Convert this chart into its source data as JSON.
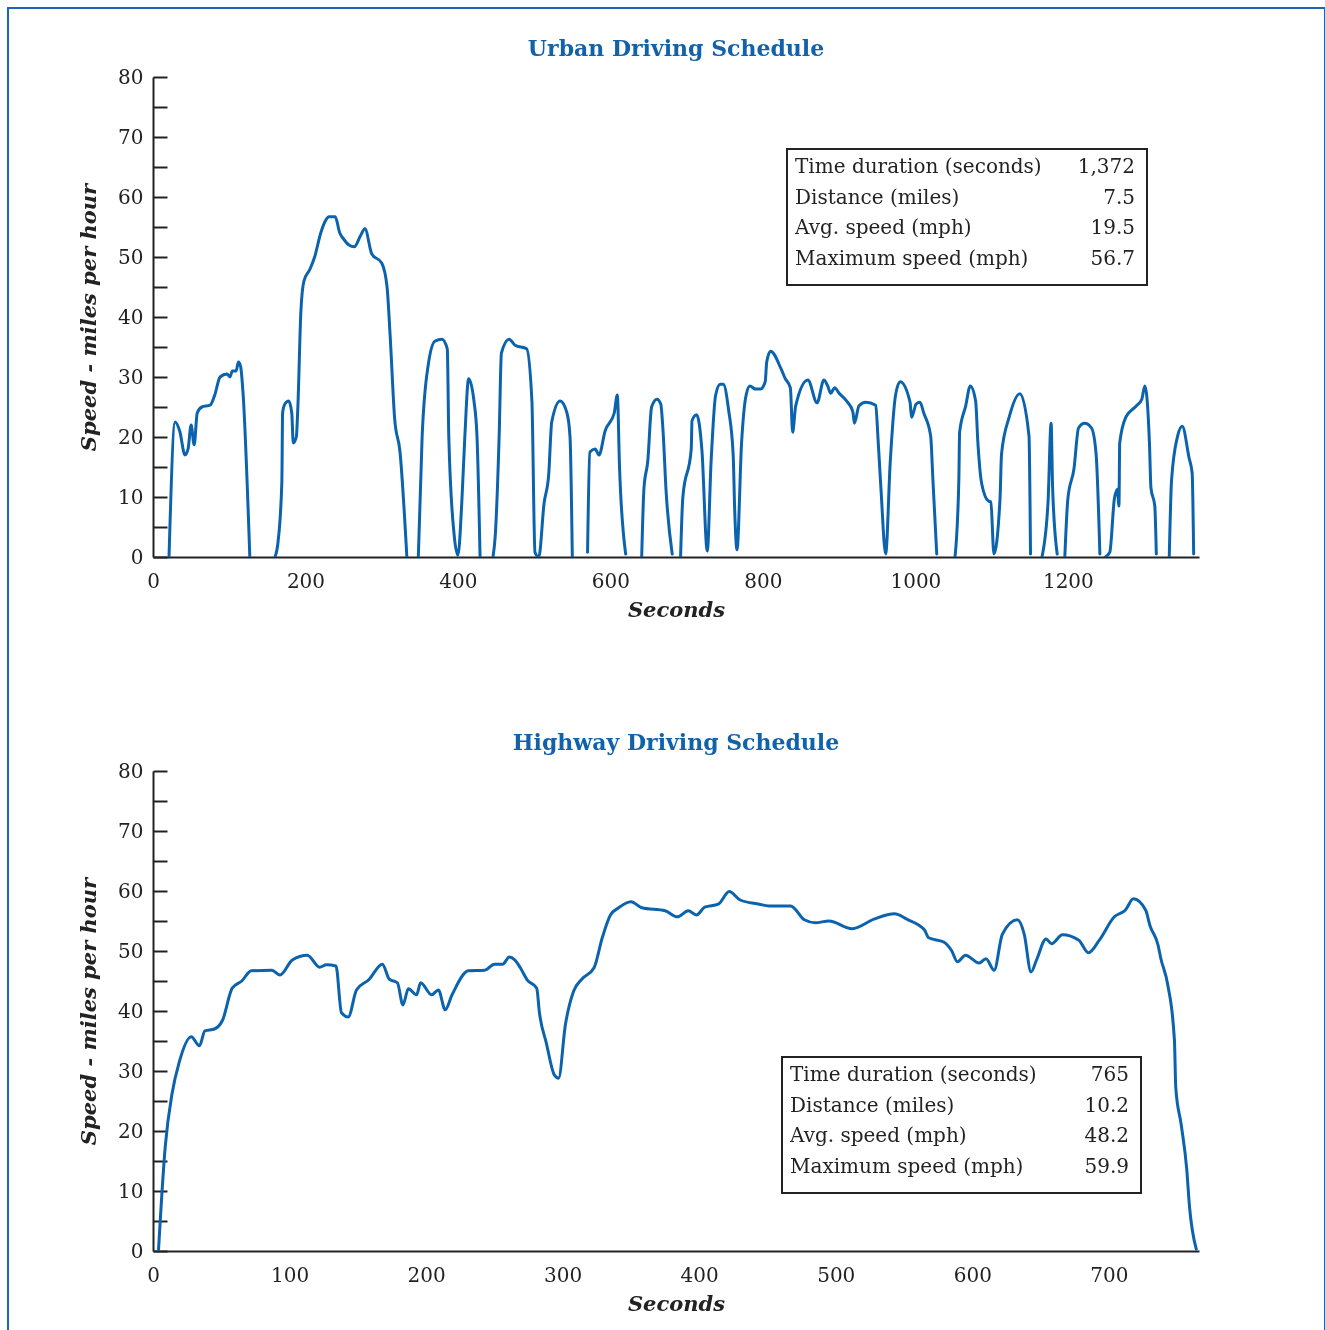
{
  "chart_data": [
    {
      "type": "line",
      "title": "Urban Driving Schedule",
      "xlabel": "Seconds",
      "ylabel": "Speed - miles per hour",
      "xlim": [
        0,
        1372
      ],
      "ylim": [
        0,
        80
      ],
      "xticks": [
        0,
        200,
        400,
        600,
        800,
        1000,
        1200
      ],
      "yticks": [
        0,
        {
          "value": 5,
          "label": null
        },
        10,
        {
          "value": 15,
          "label": null
        },
        20,
        {
          "value": 25,
          "label": null
        },
        30,
        {
          "value": 35,
          "label": null
        },
        40,
        {
          "value": 45,
          "label": null
        },
        50,
        {
          "value": 55,
          "label": null
        },
        60,
        {
          "value": 65,
          "label": null
        },
        70,
        {
          "value": 75,
          "label": null
        },
        80
      ],
      "x": [
        21,
        29,
        35,
        42,
        46,
        50,
        54,
        58,
        64,
        75,
        81,
        88,
        97,
        101,
        104,
        109,
        112,
        115,
        118,
        127,
        143,
        160,
        164,
        169,
        170,
        173,
        178,
        182,
        184,
        188,
        190,
        194,
        198,
        206,
        212,
        220,
        226,
        231,
        239,
        245,
        250,
        257,
        264,
        272,
        278,
        287,
        300,
        307,
        311,
        317,
        324,
        333,
        340,
        348,
        353,
        361,
        370,
        379,
        386,
        388,
        395,
        400,
        405,
        409,
        414,
        421,
        425,
        429,
        437,
        446,
        449,
        454,
        457,
        467,
        475,
        490,
        497,
        501,
        506,
        513,
        519,
        523,
        534,
        543,
        547,
        550,
        560,
        570,
        573,
        580,
        585,
        593,
        605,
        609,
        612,
        620,
        630,
        641,
        644,
        649,
        654,
        661,
        666,
        669,
        673,
        681,
        686,
        692,
        695,
        706,
        707,
        713,
        720,
        727,
        732,
        738,
        744,
        748,
        755,
        761,
        763,
        766,
        772,
        778,
        783,
        790,
        797,
        803,
        805,
        810,
        824,
        829,
        836,
        839,
        843,
        859,
        871,
        880,
        885,
        889,
        894,
        900,
        911,
        918,
        920,
        926,
        935,
        948,
        951,
        955,
        961,
        967,
        974,
        980,
        993,
        995,
        1001,
        1006,
        1011,
        1020,
        1023,
        1028,
        1040,
        1052,
        1057,
        1058,
        1066,
        1072,
        1079,
        1082,
        1087,
        1096,
        1099,
        1103,
        1111,
        1113,
        1123,
        1137,
        1149,
        1151,
        1158,
        1166,
        1174,
        1178,
        1180,
        1186,
        1191,
        1196,
        1200,
        1208,
        1214,
        1222,
        1231,
        1237,
        1242,
        1245,
        1249,
        1255,
        1261,
        1265,
        1267,
        1268,
        1276,
        1290,
        1297,
        1301,
        1307,
        1309,
        1314,
        1316,
        1325,
        1333,
        1336,
        1344,
        1350,
        1359,
        1363,
        1365
      ],
      "series": [
        {
          "color": "#0b63ad",
          "values": [
            0,
            22.5,
            21,
            17,
            18,
            22,
            18.7,
            24,
            25,
            25.3,
            27,
            30,
            30.5,
            30,
            31,
            31,
            32.5,
            31.7,
            27.5,
            0,
            null,
            0,
            2.5,
            12.5,
            24,
            25.5,
            26,
            24,
            19,
            20,
            25,
            41,
            46,
            48,
            50,
            54,
            56,
            56.7,
            56.7,
            54,
            53,
            52,
            51.7,
            53.5,
            54.7,
            50.5,
            49,
            45,
            37,
            23,
            17.5,
            0,
            null,
            0,
            20,
            32,
            36,
            36.3,
            34.7,
            20,
            3.7,
            0.3,
            9,
            20,
            29.7,
            26,
            20,
            0,
            null,
            0,
            3.7,
            20,
            34,
            36.3,
            35.3,
            34.7,
            26,
            0.8,
            0,
            9,
            13.7,
            22.5,
            26,
            24,
            20,
            0,
            null,
            0.8,
            17.5,
            18,
            17,
            21,
            24,
            27,
            14.7,
            0.5,
            null,
            0,
            11.5,
            16,
            25,
            26.3,
            25.5,
            21,
            11,
            0.5,
            null,
            0,
            10,
            18,
            22.7,
            23.7,
            17.8,
            1,
            15.8,
            27,
            28.8,
            28.8,
            24.5,
            17,
            7.8,
            1.2,
            19,
            27,
            28.5,
            28,
            28,
            29.2,
            32.5,
            34.3,
            31.3,
            29.8,
            28.2,
            20.8,
            25.2,
            29.5,
            25.7,
            29.5,
            28.5,
            27.3,
            28.2,
            27.3,
            25.8,
            24.2,
            22.3,
            25.2,
            25.8,
            25.3,
            19.7,
            11,
            0.5,
            15.8,
            27,
            29.2,
            25.8,
            23.3,
            25.5,
            25.8,
            24,
            20.2,
            12.8,
            0.5,
            null,
            0,
            12.8,
            20.8,
            25.2,
            28.5,
            26,
            19,
            12.2,
            9.3,
            9.2,
            0.5,
            9.7,
            17.2,
            23.3,
            27.2,
            20.2,
            0.5,
            null,
            0,
            9.2,
            22.3,
            11.5,
            0.5,
            null,
            0,
            9.7,
            14.7,
            21.5,
            22.3,
            21.5,
            17.2,
            0.5,
            null,
            0,
            0.8,
            9.7,
            11.3,
            8.5,
            19,
            23.3,
            25.2,
            26.3,
            28.5,
            19,
            11.5,
            8.5,
            0.5,
            null,
            0,
            12.8,
            20.2,
            21.8,
            16.5,
            14,
            0.5
          ]
        }
      ],
      "annotations": [
        "Time duration (seconds)",
        "1,372",
        "Distance (miles)",
        "7.5",
        "Avg. speed (mph)",
        "19.5",
        "Maximum speed (mph)",
        "56.7"
      ]
    },
    {
      "type": "line",
      "title": "Highway Driving Schedule",
      "xlabel": "Seconds",
      "ylabel": "Speed - miles per hour",
      "xlim": [
        0,
        766
      ],
      "ylim": [
        0,
        80
      ],
      "xticks": [
        0,
        100,
        200,
        300,
        400,
        500,
        600,
        700
      ],
      "yticks": [
        0,
        {
          "value": 5,
          "label": null
        },
        10,
        {
          "value": 15,
          "label": null
        },
        20,
        {
          "value": 25,
          "label": null
        },
        30,
        {
          "value": 35,
          "label": null
        },
        40,
        {
          "value": 45,
          "label": null
        },
        50,
        {
          "value": 55,
          "label": null
        },
        60,
        {
          "value": 65,
          "label": null
        },
        70,
        {
          "value": 75,
          "label": null
        },
        80
      ],
      "x": [
        4,
        9,
        14,
        19,
        28,
        34,
        38,
        45,
        51,
        58,
        65,
        72,
        87,
        93,
        102,
        113,
        122,
        127,
        134,
        138,
        143,
        149,
        158,
        168,
        173,
        179,
        183,
        187,
        193,
        196,
        204,
        209,
        214,
        219,
        231,
        243,
        250,
        256,
        261,
        265,
        269,
        274,
        281,
        283,
        288,
        294,
        297,
        302,
        308,
        314,
        323,
        329,
        335,
        341,
        350,
        358,
        375,
        384,
        392,
        398,
        404,
        414,
        422,
        430,
        444,
        451,
        467,
        477,
        485,
        495,
        512,
        528,
        543,
        552,
        565,
        568,
        579,
        585,
        589,
        595,
        605,
        610,
        616,
        622,
        633,
        638,
        643,
        647,
        654,
        658,
        666,
        678,
        685,
        693,
        704,
        712,
        718,
        727,
        730,
        736,
        738,
        743,
        748,
        749,
        753,
        757,
        759,
        764
      ],
      "series": [
        {
          "color": "#0b63ad",
          "values": [
            0,
            17.5,
            26.3,
            31.3,
            35.7,
            34.2,
            36.7,
            37,
            38.5,
            43.8,
            45,
            46.7,
            46.8,
            46,
            48.5,
            49.3,
            47.3,
            47.7,
            47.5,
            39.7,
            39,
            43.5,
            45.2,
            47.8,
            45.3,
            44.7,
            41,
            43.7,
            42.7,
            44.7,
            42.7,
            43.5,
            40.2,
            42.7,
            46.7,
            46.8,
            47.8,
            47.8,
            49,
            48.5,
            47.2,
            45.2,
            43.8,
            39.7,
            34.7,
            29.3,
            28.8,
            37.7,
            43.3,
            45.3,
            47.2,
            52.2,
            56,
            57.2,
            58.2,
            57.2,
            56.7,
            55.7,
            56.7,
            56,
            57.3,
            57.8,
            59.9,
            58.5,
            57.8,
            57.5,
            57.5,
            55.2,
            54.7,
            55,
            53.7,
            55.3,
            56.2,
            55.3,
            53.5,
            52.2,
            51.5,
            50,
            48.2,
            49.3,
            48,
            48.7,
            46.8,
            52.8,
            55.2,
            52.8,
            46.5,
            48.5,
            52,
            51.2,
            52.7,
            51.8,
            49.7,
            51.8,
            55.7,
            56.8,
            58.7,
            56.8,
            54.3,
            51,
            48.8,
            44.5,
            35.2,
            27.2,
            21,
            13.7,
            7.5,
            0.3
          ]
        }
      ],
      "annotations": [
        "Time duration (seconds)",
        "765",
        "Distance (miles)",
        "10.2",
        "Avg. speed (mph)",
        "48.2",
        "Maximum speed (mph)",
        "59.9"
      ]
    }
  ]
}
